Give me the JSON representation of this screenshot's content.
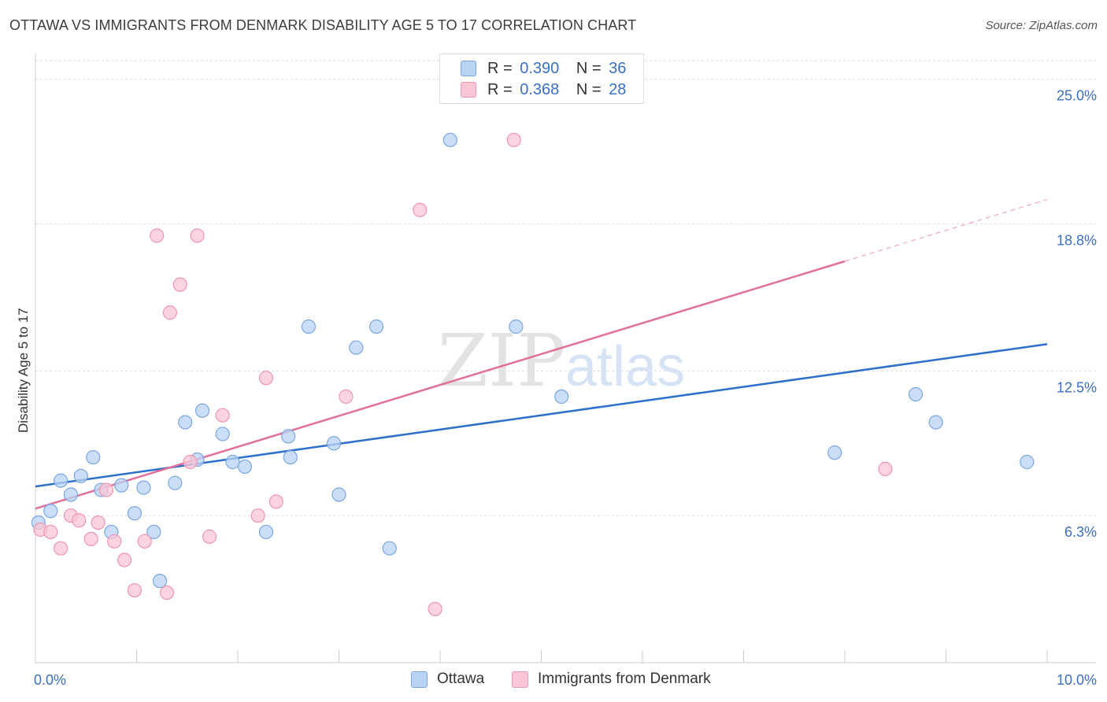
{
  "header": {
    "title": "OTTAWA VS IMMIGRANTS FROM DENMARK DISABILITY AGE 5 TO 17 CORRELATION CHART",
    "source": "Source: ZipAtlas.com"
  },
  "watermark": {
    "part1": "ZIP",
    "part2": "atlas"
  },
  "legend_top": {
    "rows": [
      {
        "r_label": "R =",
        "r_value": "0.390",
        "n_label": "N =",
        "n_value": "36"
      },
      {
        "r_label": "R =",
        "r_value": "0.368",
        "n_label": "N =",
        "n_value": "28"
      }
    ]
  },
  "legend_bottom": {
    "items": [
      "Ottawa",
      "Immigrants from Denmark"
    ]
  },
  "colors": {
    "ottawa_fill": "#b9d3f5",
    "ottawa_stroke": "#7aa6e0",
    "ottawa_line": "#2e6fcc",
    "denmark_fill": "#f9c6d6",
    "denmark_stroke": "#ee95b0",
    "denmark_line": "#e0709a",
    "tick_label": "#3a6fc4",
    "grid": "#dddddd"
  },
  "chart_data": {
    "type": "scatter",
    "ylabel": "Disability Age 5 to 17",
    "xlim": [
      0,
      10
    ],
    "ylim": [
      0,
      25.8
    ],
    "x_tick_labels": [
      {
        "value": 0,
        "label": "0.0%"
      },
      {
        "value": 10,
        "label": "10.0%"
      }
    ],
    "y_tick_labels": [
      {
        "value": 6.3,
        "label": "6.3%"
      },
      {
        "value": 12.5,
        "label": "12.5%"
      },
      {
        "value": 18.8,
        "label": "18.8%"
      },
      {
        "value": 25.0,
        "label": "25.0%"
      }
    ],
    "grid": true,
    "series": [
      {
        "name": "Ottawa",
        "points": [
          [
            0.03,
            6.0
          ],
          [
            0.15,
            6.5
          ],
          [
            0.25,
            7.8
          ],
          [
            0.35,
            7.2
          ],
          [
            0.45,
            8.0
          ],
          [
            0.57,
            8.8
          ],
          [
            0.65,
            7.4
          ],
          [
            0.75,
            5.6
          ],
          [
            0.85,
            7.6
          ],
          [
            0.98,
            6.4
          ],
          [
            1.07,
            7.5
          ],
          [
            1.17,
            5.6
          ],
          [
            1.23,
            3.5
          ],
          [
            1.38,
            7.7
          ],
          [
            1.48,
            10.3
          ],
          [
            1.6,
            8.7
          ],
          [
            1.65,
            10.8
          ],
          [
            1.85,
            9.8
          ],
          [
            1.95,
            8.6
          ],
          [
            2.07,
            8.4
          ],
          [
            2.28,
            5.6
          ],
          [
            2.5,
            9.7
          ],
          [
            2.52,
            8.8
          ],
          [
            2.7,
            14.4
          ],
          [
            2.95,
            9.4
          ],
          [
            3.0,
            7.2
          ],
          [
            3.17,
            13.5
          ],
          [
            3.37,
            14.4
          ],
          [
            3.5,
            4.9
          ],
          [
            4.1,
            22.4
          ],
          [
            4.75,
            14.4
          ],
          [
            5.2,
            11.4
          ],
          [
            7.9,
            9.0
          ],
          [
            8.7,
            11.5
          ],
          [
            8.9,
            10.3
          ],
          [
            9.8,
            8.6
          ]
        ],
        "trend": {
          "x": [
            0,
            10
          ],
          "y": [
            7.55,
            13.65
          ]
        }
      },
      {
        "name": "Immigrants from Denmark",
        "points": [
          [
            0.05,
            5.7
          ],
          [
            0.15,
            5.6
          ],
          [
            0.25,
            4.9
          ],
          [
            0.35,
            6.3
          ],
          [
            0.43,
            6.1
          ],
          [
            0.55,
            5.3
          ],
          [
            0.62,
            6.0
          ],
          [
            0.7,
            7.4
          ],
          [
            0.78,
            5.2
          ],
          [
            0.88,
            4.4
          ],
          [
            0.98,
            3.1
          ],
          [
            1.08,
            5.2
          ],
          [
            1.2,
            18.3
          ],
          [
            1.3,
            3.0
          ],
          [
            1.33,
            15.0
          ],
          [
            1.43,
            16.2
          ],
          [
            1.53,
            8.6
          ],
          [
            1.6,
            18.3
          ],
          [
            1.72,
            5.4
          ],
          [
            1.85,
            10.6
          ],
          [
            2.2,
            6.3
          ],
          [
            2.28,
            12.2
          ],
          [
            2.38,
            6.9
          ],
          [
            3.07,
            11.4
          ],
          [
            3.8,
            19.4
          ],
          [
            3.95,
            2.3
          ],
          [
            4.73,
            22.4
          ],
          [
            8.4,
            8.3
          ]
        ],
        "trend": {
          "x": [
            0,
            8.0,
            10
          ],
          "y": [
            6.6,
            17.2,
            19.85
          ]
        }
      }
    ]
  }
}
